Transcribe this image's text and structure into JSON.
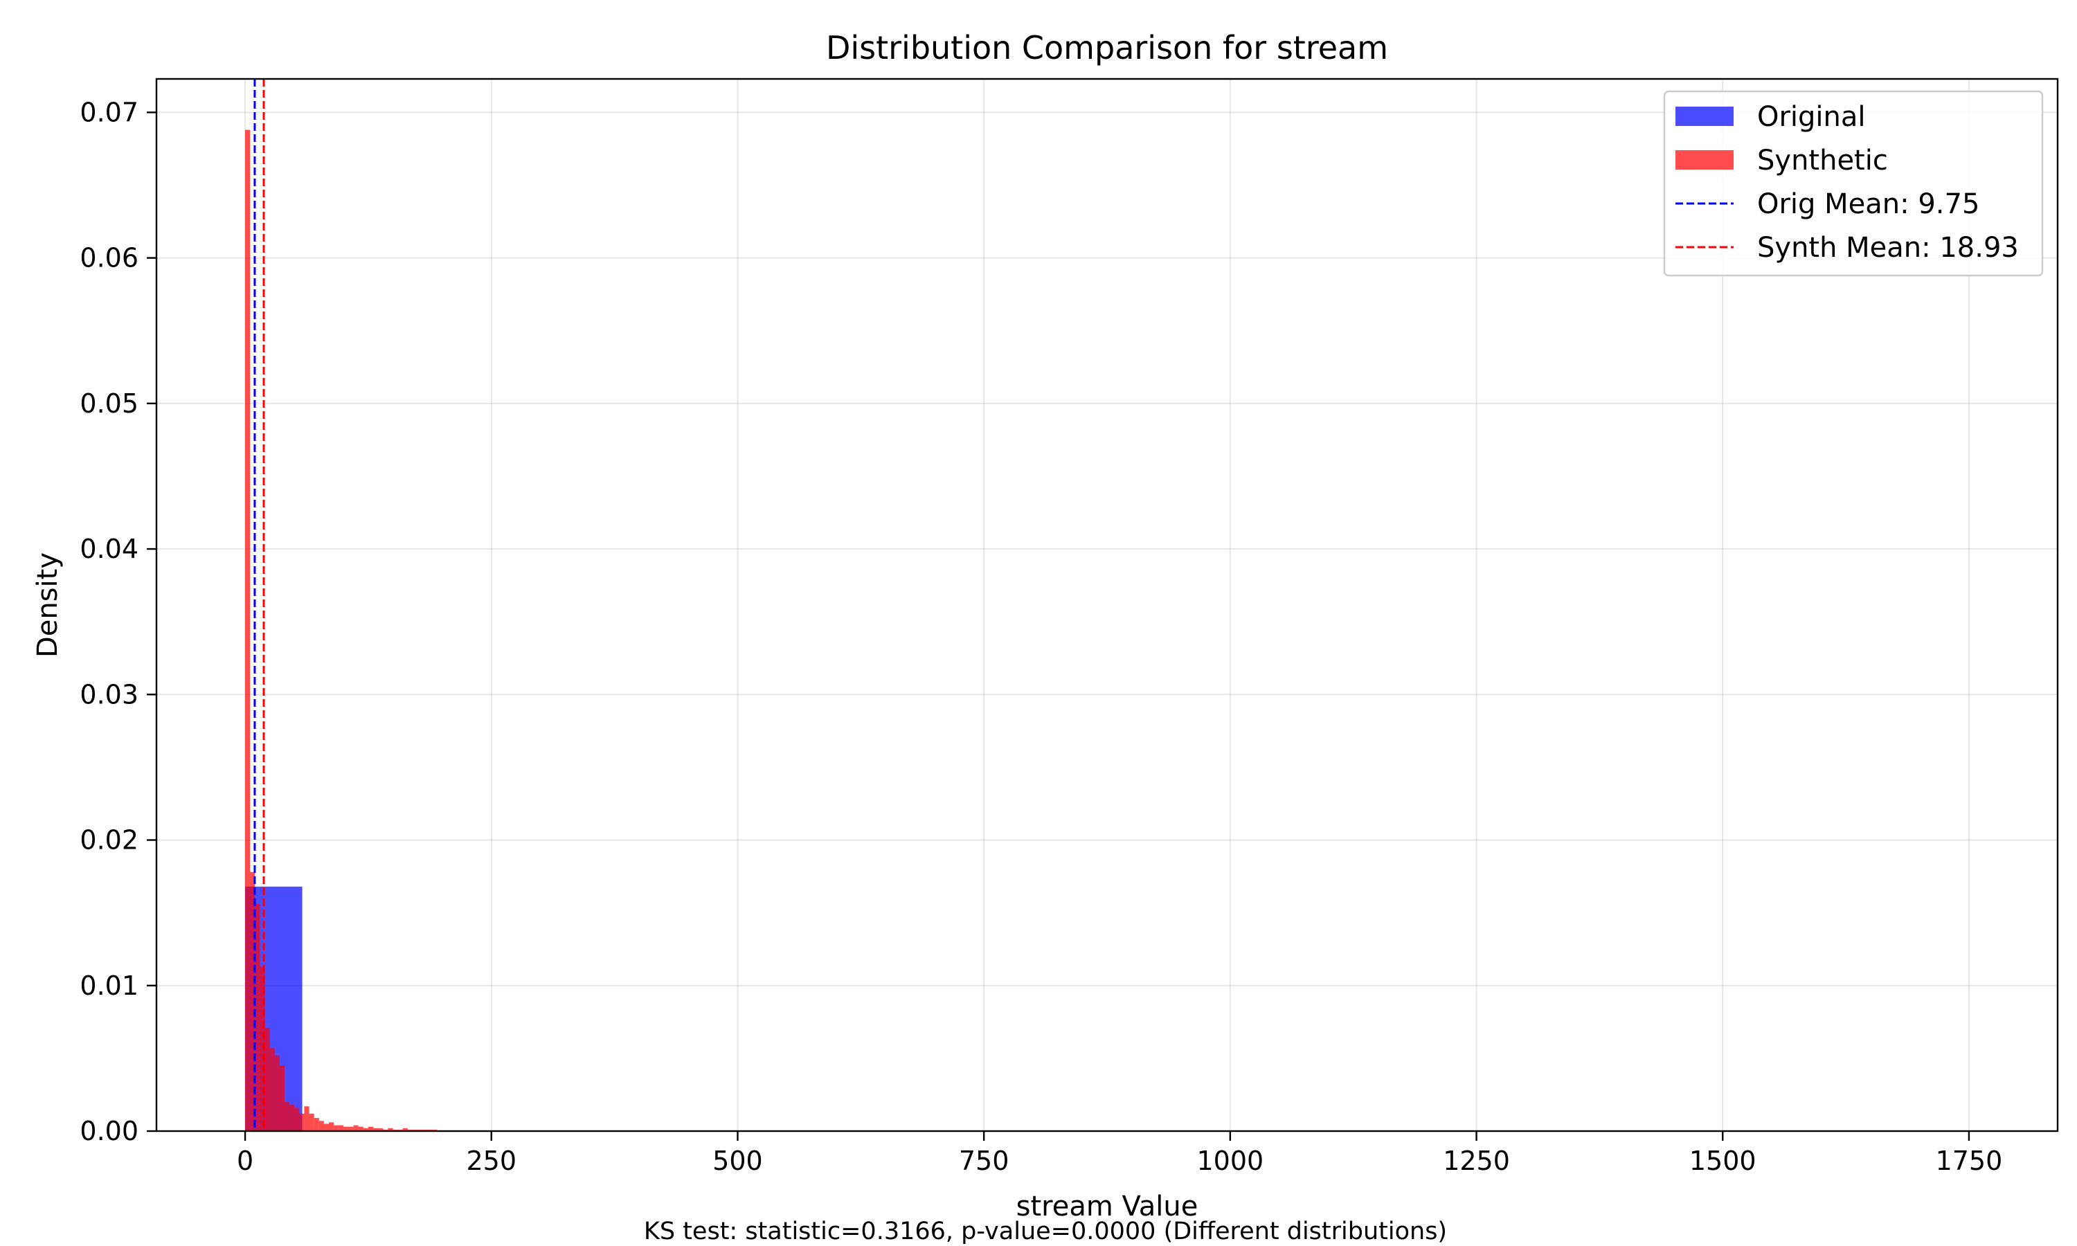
{
  "chart_data": {
    "type": "histogram",
    "title": "Distribution Comparison for stream",
    "xlabel": "stream Value",
    "ylabel": "Density",
    "footnote": "KS test: statistic=0.3166, p-value=0.0000 (Different distributions)",
    "xlim": [
      -90,
      1840
    ],
    "ylim": [
      0,
      0.0723
    ],
    "x_ticks": [
      0,
      250,
      500,
      750,
      1000,
      1250,
      1500,
      1750
    ],
    "x_tick_labels": [
      "0",
      "250",
      "500",
      "750",
      "1000",
      "1250",
      "1500",
      "1750"
    ],
    "y_ticks": [
      0,
      0.01,
      0.02,
      0.03,
      0.04,
      0.05,
      0.06,
      0.07
    ],
    "y_tick_labels": [
      "0.00",
      "0.01",
      "0.02",
      "0.03",
      "0.04",
      "0.05",
      "0.06",
      "0.07"
    ],
    "grid": true,
    "legend_position": "top-right",
    "series": [
      {
        "name": "Original",
        "color": "#0000ff",
        "alpha": 0.7,
        "bins": [
          {
            "x0": 0,
            "x1": 58,
            "density": 0.0168
          },
          {
            "x0": 58,
            "x1": 116,
            "density": 2e-05
          }
        ]
      },
      {
        "name": "Synthetic",
        "color": "#ff0000",
        "alpha": 0.7,
        "bin_start": 0,
        "bin_width": 5.0,
        "densities": [
          0.0688,
          0.0178,
          0.0156,
          0.0113,
          0.0071,
          0.0057,
          0.0052,
          0.0045,
          0.002,
          0.0018,
          0.0016,
          0.0012,
          0.0017,
          0.0012,
          0.0009,
          0.0007,
          0.0005,
          0.0006,
          0.0004,
          0.0004,
          0.0003,
          0.0003,
          0.0004,
          0.0003,
          0.0002,
          0.0003,
          0.0002,
          0.0002,
          0.0001,
          0.0002,
          0.0001,
          0.0001,
          0.0002,
          0.0001,
          0.0001,
          0.0001,
          0.0001,
          0.0001,
          0.0001,
          5e-05,
          5e-05,
          5e-05,
          5e-05
        ]
      }
    ],
    "mean_lines": [
      {
        "name": "Orig Mean: 9.75",
        "value": 9.75,
        "color": "#0000ff"
      },
      {
        "name": "Synth Mean: 18.93",
        "value": 18.93,
        "color": "#ff0000"
      }
    ]
  }
}
